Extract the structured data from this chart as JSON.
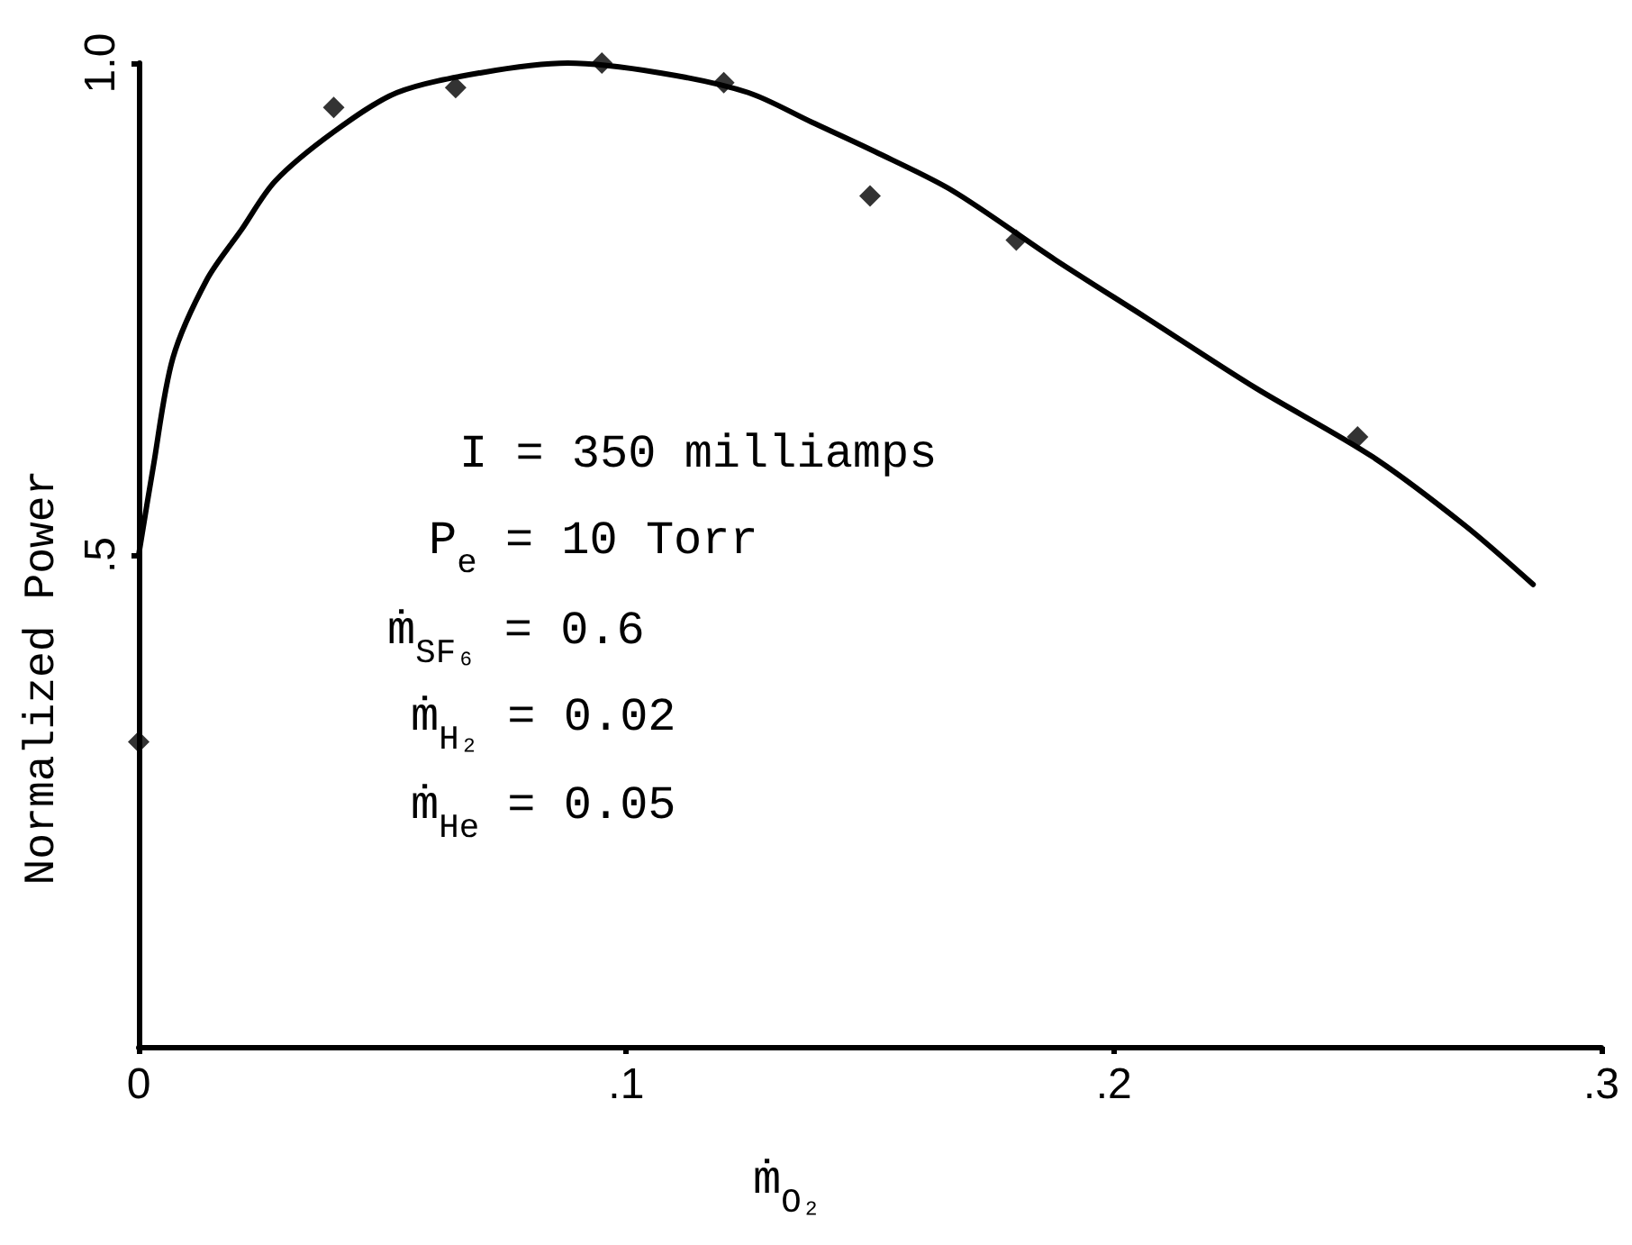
{
  "chart_data": {
    "type": "scatter",
    "xlabel": "ṁ$_{O₂}$",
    "ylabel": "Normalized Power",
    "annotations": [
      "I = 350 milliamps",
      "P$_{e}$ = 10 Torr",
      "ṁ$_{SF₆}$ = 0.6",
      "ṁ$_{H₂}$ = 0.02",
      "ṁ$_{He}$ = 0.05"
    ],
    "xlim": [
      0,
      0.3
    ],
    "ylim": [
      0,
      1
    ],
    "xticks": [
      0,
      {
        "value": 0.1,
        "label": ".1"
      },
      {
        "value": 0.2,
        "label": ".2"
      },
      {
        "value": 0.3,
        "label": ".3"
      }
    ],
    "yticks": [
      {
        "value": 0.5,
        "label": ".5"
      },
      {
        "value": 1,
        "label": "1.0"
      }
    ],
    "marker": "diamond",
    "series": [
      {
        "color": "#000000",
        "x": [
          0,
          0.04,
          0.065,
          0.095,
          0.12,
          0.15,
          0.18,
          0.25
        ],
        "values": [
          0.31,
          0.955,
          0.975,
          1.0,
          0.98,
          0.865,
          0.82,
          0.62
        ]
      },
      {
        "type": "line",
        "color": "#000000",
        "marker": "none",
        "x": [
          0,
          0.003,
          0.007,
          0.014,
          0.021,
          0.028,
          0.04,
          0.053,
          0.07,
          0.088,
          0.107,
          0.125,
          0.138,
          0.151,
          0.167,
          0.188,
          0.207,
          0.229,
          0.253,
          0.272,
          0.286
        ],
        "values": [
          0.5,
          0.59,
          0.7,
          0.78,
          0.83,
          0.88,
          0.93,
          0.97,
          0.99,
          1.0,
          0.99,
          0.97,
          0.94,
          0.91,
          0.87,
          0.8,
          0.74,
          0.67,
          0.6,
          0.53,
          0.47
        ]
      }
    ]
  }
}
